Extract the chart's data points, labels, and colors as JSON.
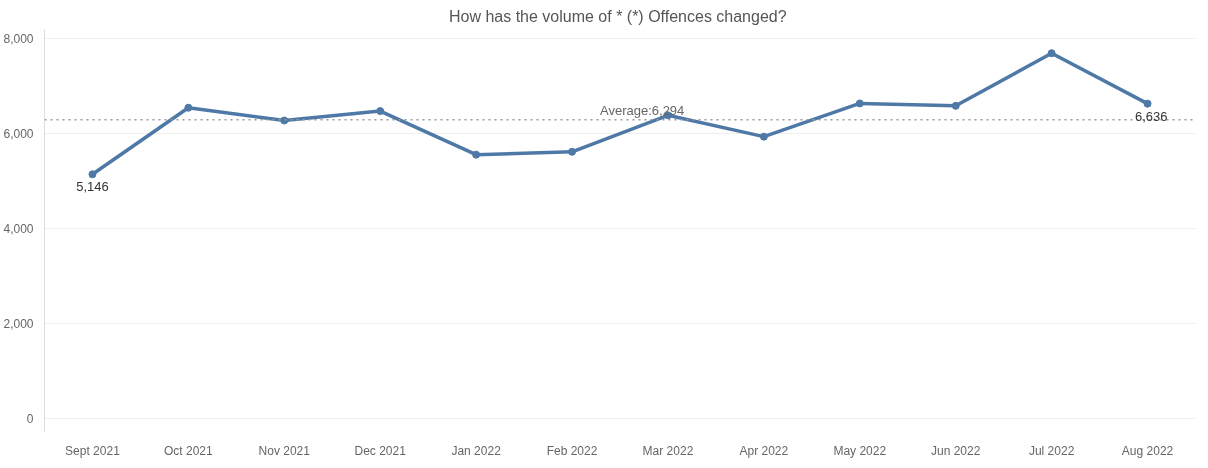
{
  "chart_data": {
    "type": "line",
    "title": "How has the volume of  * (*) Offences changed?",
    "categories": [
      "Sept 2021",
      "Oct 2021",
      "Nov 2021",
      "Dec 2021",
      "Jan 2022",
      "Feb 2022",
      "Mar 2022",
      "Apr 2022",
      "May 2022",
      "Jun 2022",
      "Jul 2022",
      "Aug 2022"
    ],
    "series": [
      {
        "color": "#4e79a7",
        "values": [
          5146,
          6550,
          6280,
          6480,
          5560,
          5620,
          6390,
          5940,
          6640,
          6590,
          7700,
          6636
        ],
        "value_labels": [
          "5,146",
          null,
          null,
          null,
          null,
          null,
          null,
          null,
          null,
          null,
          null,
          "6,636"
        ]
      }
    ],
    "ylim": [
      -300,
      8200
    ],
    "yticks": [
      {
        "value": 0,
        "label": "0"
      },
      {
        "value": 2000,
        "label": "2,000"
      },
      {
        "value": 4000,
        "label": "4,000"
      },
      {
        "value": 6000,
        "label": "6,000"
      },
      {
        "value": 8000,
        "label": "8,000"
      }
    ],
    "ref_lines": [
      {
        "axis": "y",
        "value": 6294,
        "label": "Average:6,294",
        "color": "#999999",
        "line_style": "dotted"
      }
    ],
    "grid": "y",
    "marker": "circle",
    "line_style": "solid"
  }
}
